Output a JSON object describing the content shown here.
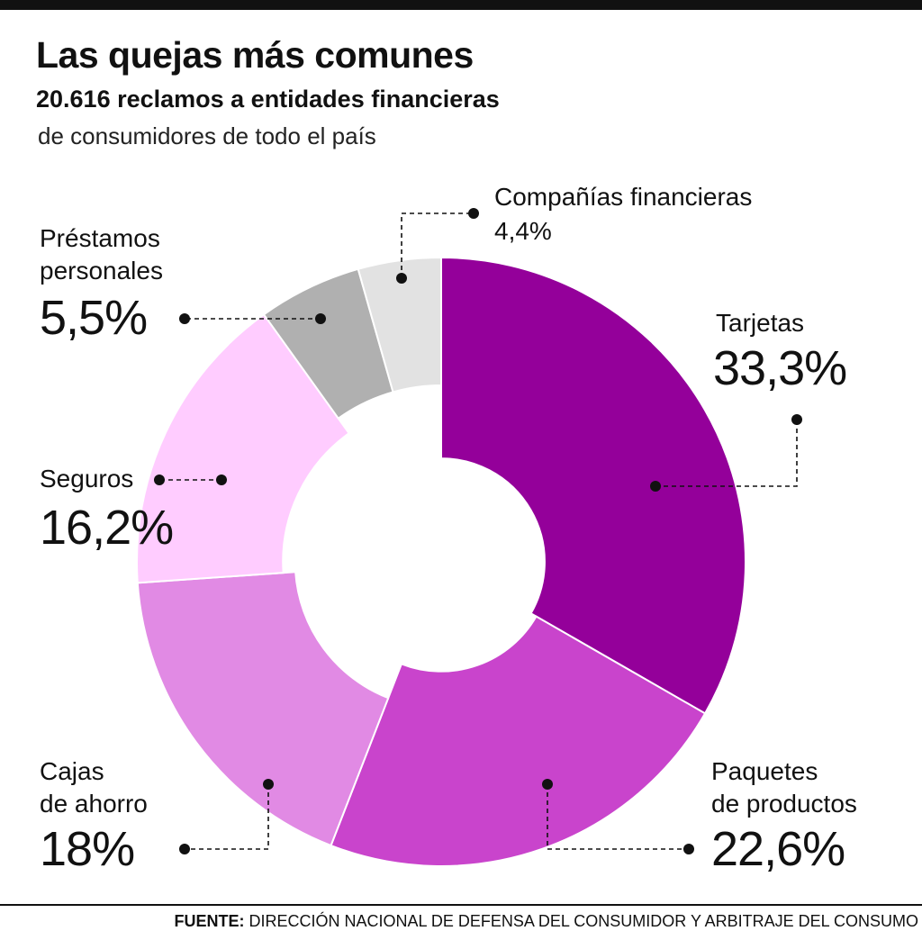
{
  "header": {
    "title": "Las quejas más comunes",
    "subtitle": "20.616 reclamos a entidades financieras",
    "subtitle2": "de consumidores de todo el país"
  },
  "labels": {
    "tarjetas_name": "Tarjetas",
    "tarjetas_value": "33,3%",
    "paquetes_name_1": "Paquetes",
    "paquetes_name_2": "de productos",
    "paquetes_value": "22,6%",
    "cajas_name_1": "Cajas",
    "cajas_name_2": "de ahorro",
    "cajas_value": "18%",
    "seguros_name": "Seguros",
    "seguros_value": "16,2%",
    "prestamos_name_1": "Préstamos",
    "prestamos_name_2": "personales",
    "prestamos_value": "5,5%",
    "companias_name": "Compañías financieras",
    "companias_value": "4,4%"
  },
  "footer": {
    "source_label": "FUENTE:",
    "source_text": "DIRECCIÓN NACIONAL DE DEFENSA DEL CONSUMIDOR Y ARBITRAJE DEL CONSUMO"
  },
  "chart_data": {
    "type": "pie",
    "title": "Las quejas más comunes",
    "subtitle": "20.616 reclamos a entidades financieras",
    "categories": [
      "Tarjetas",
      "Paquetes de productos",
      "Cajas de ahorro",
      "Seguros",
      "Préstamos personales",
      "Compañías financieras"
    ],
    "values": [
      33.3,
      22.6,
      18,
      16.2,
      5.5,
      4.4
    ],
    "unit": "%",
    "colors": [
      "#94009a",
      "#c944cc",
      "#e18ae4",
      "#ffccff",
      "#b0b0b0",
      "#e2e2e2"
    ],
    "inner_radius_ratios": [
      0.34,
      0.36,
      0.48,
      0.52,
      0.58,
      0.58
    ],
    "legend": "none"
  }
}
